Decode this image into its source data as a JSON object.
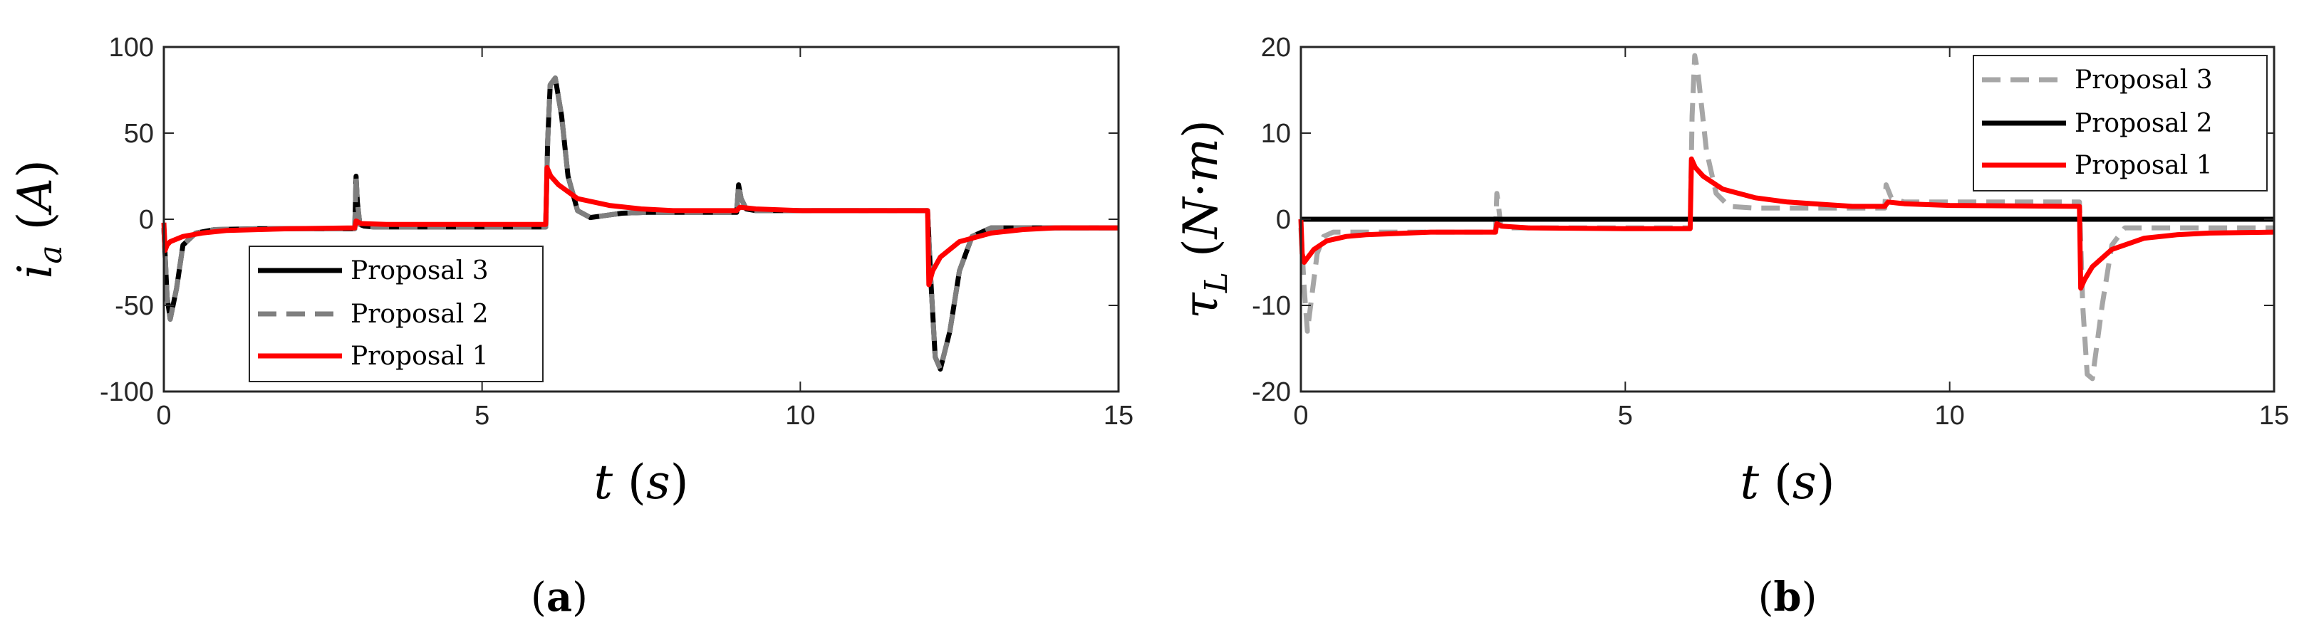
{
  "chart_data": [
    {
      "type": "line",
      "caption": "(a)",
      "xlabel": "t (s)",
      "ylabel": "i_a (A)",
      "ylabel_parts": {
        "var": "i",
        "sub": "a",
        "unit": "A"
      },
      "xlabel_parts": {
        "var": "t",
        "unit": "s"
      },
      "xlim": [
        0,
        15
      ],
      "ylim": [
        -100,
        100
      ],
      "xticks": [
        "0",
        "5",
        "10",
        "15"
      ],
      "xtick_values": [
        0,
        5,
        10,
        15
      ],
      "yticks": [
        "100",
        "50",
        "0",
        "-50",
        "-100"
      ],
      "ytick_values": [
        100,
        50,
        0,
        -50,
        -100
      ],
      "grid": false,
      "legend_position": "lower-left",
      "series": [
        {
          "name": "Proposal 3",
          "color": "#000000",
          "dash": "solid",
          "x": [
            0,
            0.05,
            0.1,
            0.2,
            0.3,
            0.5,
            0.8,
            1.5,
            3.0,
            3.02,
            3.04,
            3.08,
            3.15,
            3.3,
            3.6,
            4.5,
            6.0,
            6.03,
            6.07,
            6.15,
            6.25,
            6.35,
            6.5,
            6.7,
            6.9,
            7.2,
            7.6,
            8.5,
            9.0,
            9.03,
            9.07,
            9.15,
            9.3,
            10.5,
            12.0,
            12.05,
            12.12,
            12.2,
            12.35,
            12.5,
            12.7,
            13.0,
            13.5,
            15
          ],
          "y": [
            -5,
            -45,
            -58,
            -40,
            -15,
            -8,
            -6,
            -5.5,
            -5.5,
            25,
            10,
            -3,
            -4,
            -4.5,
            -4.5,
            -4.5,
            -4.5,
            45,
            78,
            82,
            60,
            25,
            5,
            1,
            2,
            3.5,
            4,
            4,
            4,
            20,
            12,
            6,
            5,
            5,
            5,
            -35,
            -80,
            -87,
            -65,
            -30,
            -10,
            -5,
            -5,
            -5
          ]
        },
        {
          "name": "Proposal 2",
          "color": "#7f7f7f",
          "dash": "dashed",
          "x": [
            0,
            0.05,
            0.1,
            0.2,
            0.3,
            0.5,
            0.8,
            1.5,
            3.0,
            3.02,
            3.04,
            3.08,
            3.15,
            3.3,
            3.6,
            4.5,
            6.0,
            6.03,
            6.07,
            6.15,
            6.25,
            6.35,
            6.5,
            6.7,
            6.9,
            7.2,
            7.6,
            8.5,
            9.0,
            9.03,
            9.07,
            9.15,
            9.3,
            10.5,
            12.0,
            12.05,
            12.12,
            12.2,
            12.35,
            12.5,
            12.7,
            13.0,
            13.5,
            15
          ],
          "y": [
            -5,
            -45,
            -58,
            -40,
            -15,
            -8,
            -6,
            -5.5,
            -5.5,
            25,
            10,
            -3,
            -4,
            -4.5,
            -4.5,
            -4.5,
            -4.5,
            45,
            78,
            82,
            60,
            25,
            5,
            1,
            2,
            3.5,
            4,
            4,
            4,
            20,
            12,
            6,
            5,
            5,
            5,
            -35,
            -80,
            -87,
            -65,
            -30,
            -10,
            -5,
            -5,
            -5
          ]
        },
        {
          "name": "Proposal 1",
          "color": "#ff0000",
          "dash": "solid",
          "x": [
            0,
            0.02,
            0.05,
            0.1,
            0.3,
            0.6,
            1.0,
            1.5,
            2.0,
            3.0,
            3.02,
            3.1,
            3.5,
            5.0,
            6.0,
            6.02,
            6.08,
            6.2,
            6.5,
            7.0,
            7.5,
            8.0,
            9.0,
            9.05,
            9.3,
            10.0,
            12.0,
            12.02,
            12.08,
            12.2,
            12.5,
            13.0,
            13.5,
            14.0,
            15
          ],
          "y": [
            -2,
            -18,
            -15,
            -13,
            -10,
            -8,
            -6.5,
            -6,
            -5.5,
            -5,
            -1,
            -2.5,
            -3,
            -3,
            -3,
            30,
            25,
            20,
            12,
            8,
            6,
            5,
            5,
            7,
            6,
            5,
            5,
            -38,
            -30,
            -22,
            -13,
            -8,
            -6,
            -5,
            -5
          ]
        }
      ]
    },
    {
      "type": "line",
      "caption": "(b)",
      "xlabel": "t (s)",
      "ylabel": "τ_L (N·m)",
      "ylabel_parts": {
        "var": "τ",
        "sub": "L",
        "unit_a": "N",
        "dot": "·",
        "unit_b": "m"
      },
      "xlabel_parts": {
        "var": "t",
        "unit": "s"
      },
      "xlim": [
        0,
        15
      ],
      "ylim": [
        -20,
        20
      ],
      "xticks": [
        "0",
        "5",
        "10",
        "15"
      ],
      "xtick_values": [
        0,
        5,
        10,
        15
      ],
      "yticks": [
        "20",
        "10",
        "0",
        "-10",
        "-20"
      ],
      "ytick_values": [
        20,
        10,
        0,
        -10,
        -20
      ],
      "grid": false,
      "legend_position": "top-right",
      "series": [
        {
          "name": "Proposal 3",
          "color": "#a6a6a6",
          "dash": "dashed",
          "x": [
            0,
            0.05,
            0.1,
            0.15,
            0.25,
            0.35,
            0.5,
            0.8,
            1.5,
            3.0,
            3.02,
            3.04,
            3.08,
            3.2,
            4.5,
            6.0,
            6.03,
            6.07,
            6.12,
            6.25,
            6.4,
            6.6,
            7.0,
            7.8,
            9.0,
            9.02,
            9.1,
            9.3,
            10.5,
            12.0,
            12.05,
            12.12,
            12.2,
            12.35,
            12.5,
            12.7,
            13.0,
            15
          ],
          "y": [
            -1,
            -8,
            -13,
            -10,
            -4,
            -2,
            -1.5,
            -1.5,
            -1.5,
            -1.5,
            3,
            2,
            -0.8,
            -1,
            -1,
            -1,
            12,
            19,
            17,
            8,
            3,
            1.5,
            1.3,
            1.3,
            1.3,
            4,
            2.5,
            2,
            2,
            2,
            -10,
            -18,
            -18.5,
            -10,
            -3,
            -1,
            -1,
            -1
          ]
        },
        {
          "name": "Proposal 2",
          "color": "#000000",
          "dash": "solid",
          "x": [
            0,
            15
          ],
          "y": [
            0,
            0
          ]
        },
        {
          "name": "Proposal 1",
          "color": "#ff0000",
          "dash": "solid",
          "x": [
            0,
            0.02,
            0.05,
            0.1,
            0.2,
            0.4,
            0.7,
            1.0,
            2.0,
            3.0,
            3.02,
            3.1,
            3.5,
            5.0,
            6.0,
            6.02,
            6.08,
            6.2,
            6.5,
            7.0,
            7.5,
            8.5,
            9.0,
            9.05,
            9.3,
            10.0,
            12.0,
            12.02,
            12.08,
            12.2,
            12.5,
            13.0,
            13.5,
            14.0,
            15
          ],
          "y": [
            0,
            -4,
            -5,
            -4.5,
            -3.5,
            -2.5,
            -2,
            -1.8,
            -1.5,
            -1.5,
            -0.5,
            -0.8,
            -1,
            -1.1,
            -1.1,
            7,
            6,
            5,
            3.5,
            2.5,
            2,
            1.5,
            1.5,
            2,
            1.8,
            1.6,
            1.5,
            -8,
            -7,
            -5.5,
            -3.5,
            -2.2,
            -1.8,
            -1.6,
            -1.5
          ]
        }
      ]
    }
  ]
}
